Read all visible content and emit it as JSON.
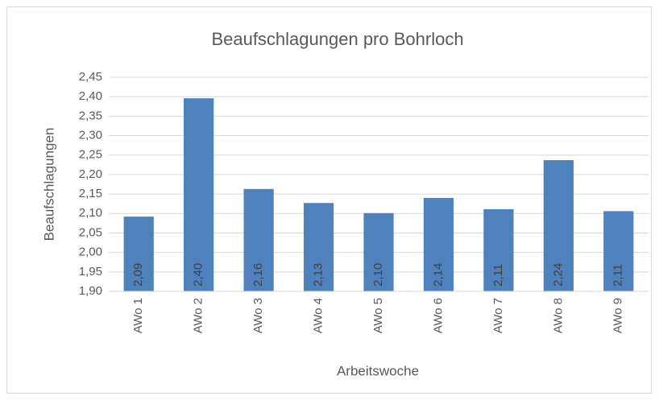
{
  "chart_data": {
    "type": "bar",
    "title": "Beaufschlagungen pro Bohrloch",
    "x_label": "Arbeitswoche",
    "y_label": "Beaufschlagungen",
    "categories": [
      "AWo 1",
      "AWo 2",
      "AWo 3",
      "AWo 4",
      "AWo 5",
      "AWo 6",
      "AWo 7",
      "AWo 8",
      "AWo 9"
    ],
    "values": [
      2.092,
      2.396,
      2.163,
      2.127,
      2.101,
      2.14,
      2.111,
      2.237,
      2.106
    ],
    "value_labels": [
      "2,09",
      "2,40",
      "2,16",
      "2,13",
      "2,10",
      "2,14",
      "2,11",
      "2,24",
      "2,11"
    ],
    "color": "#4f81bd",
    "ylim": [
      1.9,
      2.45
    ],
    "yticks": [
      {
        "value": 1.9,
        "label": "1,90"
      },
      {
        "value": 1.95,
        "label": "1,95"
      },
      {
        "value": 2.0,
        "label": "2,00"
      },
      {
        "value": 2.05,
        "label": "2,05"
      },
      {
        "value": 2.1,
        "label": "2,10"
      },
      {
        "value": 2.15,
        "label": "2,15"
      },
      {
        "value": 2.2,
        "label": "2,20"
      },
      {
        "value": 2.25,
        "label": "2,25"
      },
      {
        "value": 2.3,
        "label": "2,30"
      },
      {
        "value": 2.35,
        "label": "2,35"
      },
      {
        "value": 2.4,
        "label": "2,40"
      },
      {
        "value": 2.45,
        "label": "2,45"
      }
    ],
    "grid": true
  }
}
